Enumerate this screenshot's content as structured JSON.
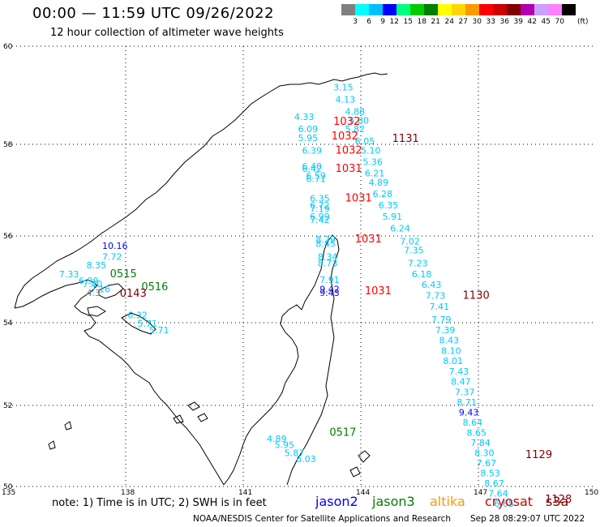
{
  "header": {
    "title": "00:00 — 11:59 UTC 09/26/2022",
    "subtitle": "12 hour collection of altimeter wave heights"
  },
  "scale": {
    "colors": [
      "#808080",
      "#00ffff",
      "#00bfff",
      "#0000ff",
      "#00ff80",
      "#00cc00",
      "#008000",
      "#ffff00",
      "#ffd700",
      "#ff9900",
      "#ff0000",
      "#cc0000",
      "#800000",
      "#b000b0",
      "#c8a0ff",
      "#ff80ff",
      "#000000"
    ],
    "labels": [
      "3",
      "6",
      "9",
      "12",
      "15",
      "18",
      "21",
      "24",
      "27",
      "30",
      "33",
      "36",
      "39",
      "42",
      "45",
      "70"
    ],
    "unit": "(ft)"
  },
  "map": {
    "lat_labels": [
      "60",
      "58",
      "56",
      "54",
      "52",
      "50"
    ],
    "lon_labels": [
      "135",
      "138",
      "141",
      "144",
      "147",
      "150"
    ],
    "satellite_colors": {
      "jason2": "#0000ff",
      "jason3": "#008000",
      "altika": "#ff9900",
      "cryosat": "#cc0000",
      "s3a": "#800000"
    },
    "tracks": [
      {
        "id": "track-north-sakhalin",
        "color": "#00c8ff",
        "labels": [
          {
            "v": "3.15",
            "lon": 143.3,
            "lat": 59.1
          },
          {
            "v": "4.13",
            "lon": 143.35,
            "lat": 58.85
          },
          {
            "v": "4.88",
            "lon": 143.6,
            "lat": 58.6
          },
          {
            "v": "4.33",
            "lon": 142.3,
            "lat": 58.5
          },
          {
            "v": "5.80",
            "lon": 143.7,
            "lat": 58.42
          },
          {
            "v": "6.09",
            "lon": 142.4,
            "lat": 58.25
          },
          {
            "v": "5.82",
            "lon": 143.6,
            "lat": 58.25
          },
          {
            "v": "5.95",
            "lon": 142.4,
            "lat": 58.07
          },
          {
            "v": "6.05",
            "lon": 143.85,
            "lat": 58.0
          },
          {
            "v": "6.39",
            "lon": 142.5,
            "lat": 57.8
          },
          {
            "v": "5.10",
            "lon": 144.0,
            "lat": 57.8
          },
          {
            "v": "5.36",
            "lon": 144.05,
            "lat": 57.55
          },
          {
            "v": "6.40",
            "lon": 142.5,
            "lat": 57.45
          },
          {
            "v": "6.42",
            "lon": 142.5,
            "lat": 57.4
          },
          {
            "v": "6.21",
            "lon": 144.1,
            "lat": 57.3
          },
          {
            "v": "6.59",
            "lon": 142.6,
            "lat": 57.25
          },
          {
            "v": "6.71",
            "lon": 142.6,
            "lat": 57.18
          },
          {
            "v": "4.89",
            "lon": 144.2,
            "lat": 57.1
          },
          {
            "v": "6.28",
            "lon": 144.3,
            "lat": 56.85
          },
          {
            "v": "6.35",
            "lon": 142.7,
            "lat": 56.75
          },
          {
            "v": "6.72",
            "lon": 142.7,
            "lat": 56.6
          },
          {
            "v": "6.35",
            "lon": 144.45,
            "lat": 56.6
          },
          {
            "v": "7.19",
            "lon": 142.7,
            "lat": 56.52
          },
          {
            "v": "5.91",
            "lon": 144.55,
            "lat": 56.35
          },
          {
            "v": "6.99",
            "lon": 142.7,
            "lat": 56.35
          },
          {
            "v": "7.42",
            "lon": 142.7,
            "lat": 56.28
          },
          {
            "v": "6.24",
            "lon": 144.75,
            "lat": 56.1
          },
          {
            "v": "7.02",
            "lon": 145.0,
            "lat": 55.8
          },
          {
            "v": "8.29",
            "lon": 142.85,
            "lat": 55.85
          },
          {
            "v": "8.45",
            "lon": 142.85,
            "lat": 55.75
          },
          {
            "v": "7.35",
            "lon": 145.1,
            "lat": 55.6
          },
          {
            "v": "8.34",
            "lon": 142.9,
            "lat": 55.45
          },
          {
            "v": "7.23",
            "lon": 145.2,
            "lat": 55.3
          },
          {
            "v": "8.73",
            "lon": 142.9,
            "lat": 55.3
          },
          {
            "v": "6.18",
            "lon": 145.3,
            "lat": 55.05
          },
          {
            "v": "6.43",
            "lon": 145.55,
            "lat": 54.8
          },
          {
            "v": "7.91",
            "lon": 142.95,
            "lat": 54.92
          },
          {
            "v": "7.73",
            "lon": 145.65,
            "lat": 54.55
          },
          {
            "v": "7.41",
            "lon": 145.75,
            "lat": 54.3
          },
          {
            "v": "7.79",
            "lon": 145.8,
            "lat": 54.0
          },
          {
            "v": "7.39",
            "lon": 145.9,
            "lat": 53.75
          },
          {
            "v": "8.43",
            "lon": 146.0,
            "lat": 53.5
          },
          {
            "v": "8.10",
            "lon": 146.05,
            "lat": 53.25
          },
          {
            "v": "8.01",
            "lon": 146.1,
            "lat": 53.0
          },
          {
            "v": "7.43",
            "lon": 146.25,
            "lat": 52.75
          },
          {
            "v": "8.47",
            "lon": 146.3,
            "lat": 52.5
          },
          {
            "v": "7.37",
            "lon": 146.4,
            "lat": 52.25
          },
          {
            "v": "8.71",
            "lon": 146.45,
            "lat": 52.0
          },
          {
            "v": "8.64",
            "lon": 146.6,
            "lat": 51.5
          },
          {
            "v": "8.65",
            "lon": 146.7,
            "lat": 51.25
          },
          {
            "v": "7.84",
            "lon": 146.8,
            "lat": 51.0
          },
          {
            "v": "8.30",
            "lon": 146.9,
            "lat": 50.75
          },
          {
            "v": "7.67",
            "lon": 146.95,
            "lat": 50.5
          },
          {
            "v": "8.53",
            "lon": 147.05,
            "lat": 50.25
          },
          {
            "v": "8.67",
            "lon": 147.15,
            "lat": 50.0
          },
          {
            "v": "7.64",
            "lon": 147.25,
            "lat": 49.75
          },
          {
            "v": "6.65",
            "lon": 147.4,
            "lat": 49.5
          }
        ]
      },
      {
        "id": "track-west",
        "color": "#00c8ff",
        "labels": [
          {
            "v": "7.72",
            "lon": 137.4,
            "lat": 55.45
          },
          {
            "v": "8.35",
            "lon": 137.0,
            "lat": 55.25
          },
          {
            "v": "7.33",
            "lon": 136.3,
            "lat": 55.05
          },
          {
            "v": "6.99",
            "lon": 136.8,
            "lat": 54.9
          },
          {
            "v": "7.40",
            "lon": 136.9,
            "lat": 54.82
          },
          {
            "v": "7.16",
            "lon": 137.1,
            "lat": 54.7
          },
          {
            "v": "6.32",
            "lon": 138.05,
            "lat": 54.1
          },
          {
            "v": "5.71",
            "lon": 138.3,
            "lat": 53.9
          },
          {
            "v": "5.71",
            "lon": 138.6,
            "lat": 53.75
          }
        ]
      },
      {
        "id": "track-south",
        "color": "#00c8ff",
        "labels": [
          {
            "v": "4.89",
            "lon": 141.6,
            "lat": 51.1
          },
          {
            "v": "5.95",
            "lon": 141.8,
            "lat": 50.95
          },
          {
            "v": "5.87",
            "lon": 142.05,
            "lat": 50.75
          },
          {
            "v": "6.03",
            "lon": 142.35,
            "lat": 50.6
          }
        ]
      }
    ],
    "markers": [
      {
        "v": "10.16",
        "lon": 137.4,
        "lat": 55.7,
        "color": "#0000ff"
      },
      {
        "v": "9.43",
        "lon": 146.5,
        "lat": 51.75,
        "color": "#0000ff"
      },
      {
        "v": "9.42",
        "lon": 142.95,
        "lat": 54.7,
        "color": "#0000ff"
      },
      {
        "v": "9.43",
        "lon": 142.95,
        "lat": 54.62,
        "color": "#0000ff"
      },
      {
        "v": "4.3",
        "lon": 137.0,
        "lat": 54.62,
        "color": "#808080"
      },
      {
        "v": "1032",
        "lon": 143.3,
        "lat": 58.4,
        "color": "#ff0000",
        "big": true
      },
      {
        "v": "1032",
        "lon": 143.25,
        "lat": 58.1,
        "color": "#ff0000",
        "big": true
      },
      {
        "v": "1131",
        "lon": 144.8,
        "lat": 58.05,
        "color": "#800000",
        "big": true
      },
      {
        "v": "1032",
        "lon": 143.35,
        "lat": 57.8,
        "color": "#ff0000",
        "big": true
      },
      {
        "v": "1031",
        "lon": 143.35,
        "lat": 57.4,
        "color": "#ff0000",
        "big": true
      },
      {
        "v": "1031",
        "lon": 143.6,
        "lat": 56.75,
        "color": "#ff0000",
        "big": true
      },
      {
        "v": "1031",
        "lon": 143.85,
        "lat": 55.85,
        "color": "#ff0000",
        "big": true
      },
      {
        "v": "1031",
        "lon": 144.1,
        "lat": 54.65,
        "color": "#ff0000",
        "big": true
      },
      {
        "v": "1130",
        "lon": 146.6,
        "lat": 54.55,
        "color": "#800000",
        "big": true
      },
      {
        "v": "1129",
        "lon": 148.2,
        "lat": 50.7,
        "color": "#800000",
        "big": true
      },
      {
        "v": "1128",
        "lon": 148.7,
        "lat": 49.6,
        "color": "#800000",
        "big": true
      },
      {
        "v": "0515",
        "lon": 137.6,
        "lat": 55.05,
        "color": "#008000",
        "big": true
      },
      {
        "v": "0516",
        "lon": 138.4,
        "lat": 54.75,
        "color": "#008000",
        "big": true
      },
      {
        "v": "0143",
        "lon": 137.85,
        "lat": 54.6,
        "color": "#800000",
        "big": true
      },
      {
        "v": "0517",
        "lon": 143.2,
        "lat": 51.25,
        "color": "#008000",
        "big": true
      }
    ]
  },
  "footer": {
    "note": "note: 1) Time is in UTC; 2) SWH is in feet",
    "legend": [
      {
        "key": "jason2",
        "label": "jason2",
        "color": "#0000ff",
        "x": 389
      },
      {
        "key": "jason3",
        "label": "jason3",
        "color": "#008000",
        "x": 459
      },
      {
        "key": "altika",
        "label": "altika",
        "color": "#ff9900",
        "x": 530
      },
      {
        "key": "cryosat",
        "label": "cryosat",
        "color": "#cc0000",
        "x": 598
      },
      {
        "key": "s3a",
        "label": "s3a",
        "color": "#800000",
        "x": 673
      }
    ],
    "credit": "NOAA/NESDIS Center for Satellite Applications and Research",
    "generated": "Sep 28 08:29:07 UTC 2022"
  }
}
